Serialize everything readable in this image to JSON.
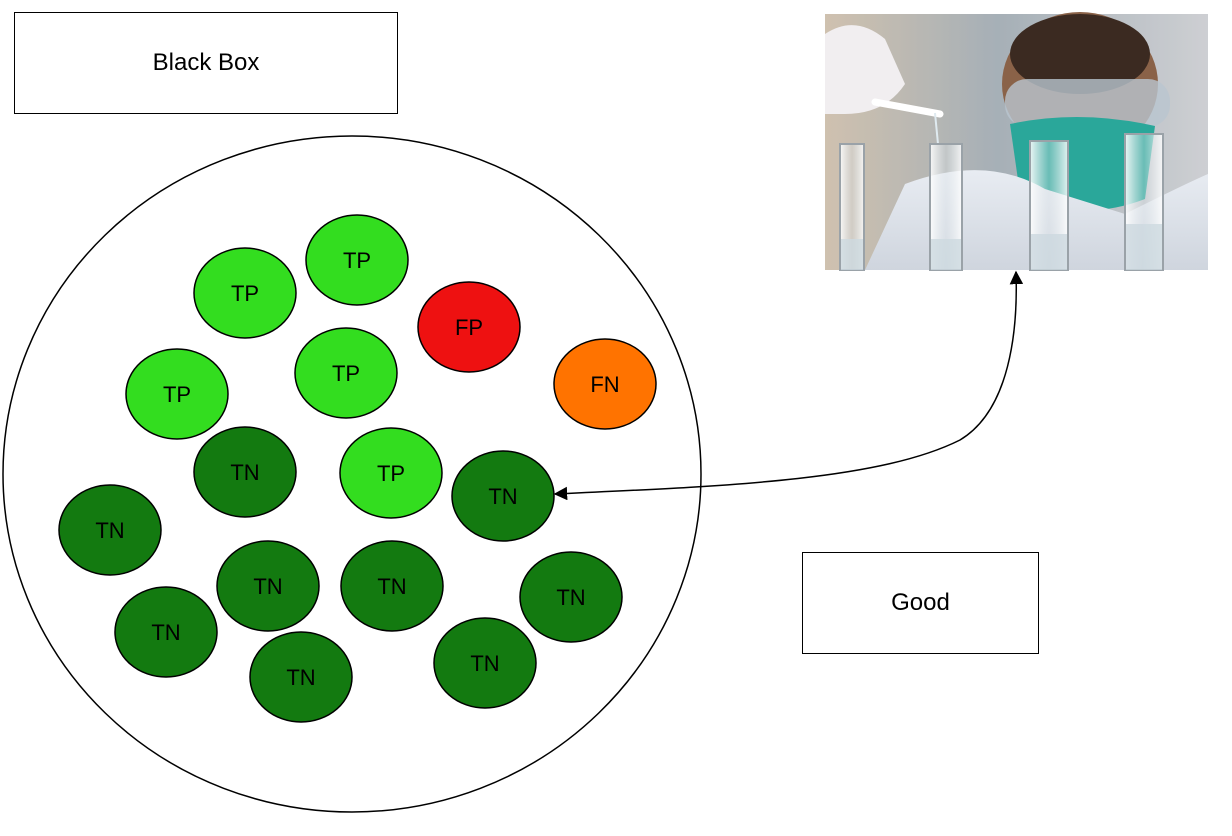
{
  "labels": {
    "black_box": "Black Box",
    "good": "Good"
  },
  "colors": {
    "TP": "#33dd1f",
    "FP": "#ee1111",
    "FN": "#ff7300",
    "TN": "#137a10",
    "outline": "#000000"
  },
  "nodes": [
    {
      "id": "tp-1",
      "label": "TP"
    },
    {
      "id": "tp-2",
      "label": "TP"
    },
    {
      "id": "fp-1",
      "label": "FP"
    },
    {
      "id": "tp-3",
      "label": "TP"
    },
    {
      "id": "fn-1",
      "label": "FN"
    },
    {
      "id": "tp-4",
      "label": "TP"
    },
    {
      "id": "tn-1",
      "label": "TN"
    },
    {
      "id": "tp-5",
      "label": "TP"
    },
    {
      "id": "tn-2",
      "label": "TN"
    },
    {
      "id": "tn-3",
      "label": "TN"
    },
    {
      "id": "tn-4",
      "label": "TN"
    },
    {
      "id": "tn-5",
      "label": "TN"
    },
    {
      "id": "tn-6",
      "label": "TN"
    },
    {
      "id": "tn-7",
      "label": "TN"
    },
    {
      "id": "tn-8",
      "label": "TN"
    },
    {
      "id": "tn-9",
      "label": "TN"
    }
  ],
  "photo": {
    "subject": "lab-technician-with-test-tubes-photo"
  }
}
